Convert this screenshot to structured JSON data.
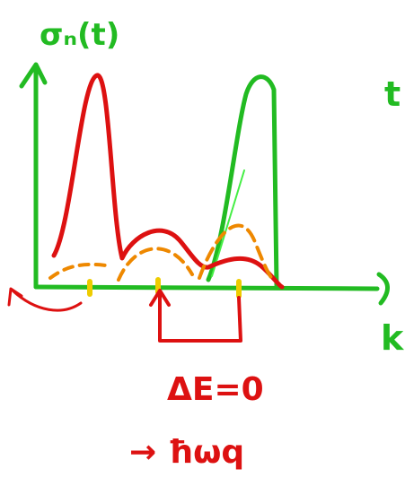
{
  "axis_labels": {
    "y": "σₙ(t)",
    "x": "k"
  },
  "edge_label": "t",
  "annotations": [
    "ΔE=0",
    "→ ħωq"
  ]
}
